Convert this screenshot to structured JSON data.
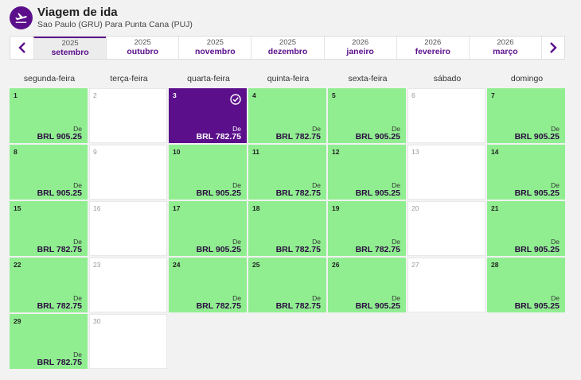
{
  "header": {
    "title": "Viagem de ida",
    "subtitle": "Sao Paulo (GRU) Para Punta Cana (PUJ)",
    "icon": "plane-departure-icon"
  },
  "months": [
    {
      "year": "2025",
      "name": "setembro",
      "active": true
    },
    {
      "year": "2025",
      "name": "outubro"
    },
    {
      "year": "2025",
      "name": "novembro"
    },
    {
      "year": "2025",
      "name": "dezembro"
    },
    {
      "year": "2026",
      "name": "janeiro"
    },
    {
      "year": "2026",
      "name": "fevereiro"
    },
    {
      "year": "2026",
      "name": "março"
    }
  ],
  "weekdays": [
    "segunda-feira",
    "terça-feira",
    "quarta-feira",
    "quinta-feira",
    "sexta-feira",
    "sábado",
    "domingo"
  ],
  "from_label": "De",
  "days": [
    {
      "day": "1",
      "price": "BRL 905.25"
    },
    {
      "day": "2"
    },
    {
      "day": "3",
      "price": "BRL 782.75",
      "selected": true
    },
    {
      "day": "4",
      "price": "BRL 782.75"
    },
    {
      "day": "5",
      "price": "BRL 905.25"
    },
    {
      "day": "6"
    },
    {
      "day": "7",
      "price": "BRL 905.25"
    },
    {
      "day": "8",
      "price": "BRL 905.25"
    },
    {
      "day": "9"
    },
    {
      "day": "10",
      "price": "BRL 905.25"
    },
    {
      "day": "11",
      "price": "BRL 782.75"
    },
    {
      "day": "12",
      "price": "BRL 905.25"
    },
    {
      "day": "13"
    },
    {
      "day": "14",
      "price": "BRL 905.25"
    },
    {
      "day": "15",
      "price": "BRL 782.75"
    },
    {
      "day": "16"
    },
    {
      "day": "17",
      "price": "BRL 905.25"
    },
    {
      "day": "18",
      "price": "BRL 782.75"
    },
    {
      "day": "19",
      "price": "BRL 782.75"
    },
    {
      "day": "20"
    },
    {
      "day": "21",
      "price": "BRL 905.25"
    },
    {
      "day": "22",
      "price": "BRL 782.75"
    },
    {
      "day": "23"
    },
    {
      "day": "24",
      "price": "BRL 782.75"
    },
    {
      "day": "25",
      "price": "BRL 782.75"
    },
    {
      "day": "26",
      "price": "BRL 905.25"
    },
    {
      "day": "27"
    },
    {
      "day": "28",
      "price": "BRL 905.25"
    },
    {
      "day": "29",
      "price": "BRL 782.75"
    },
    {
      "day": "30"
    }
  ],
  "colors": {
    "brand": "#5b0f8b",
    "available": "#90ee90",
    "unavailable": "#ffffff"
  }
}
